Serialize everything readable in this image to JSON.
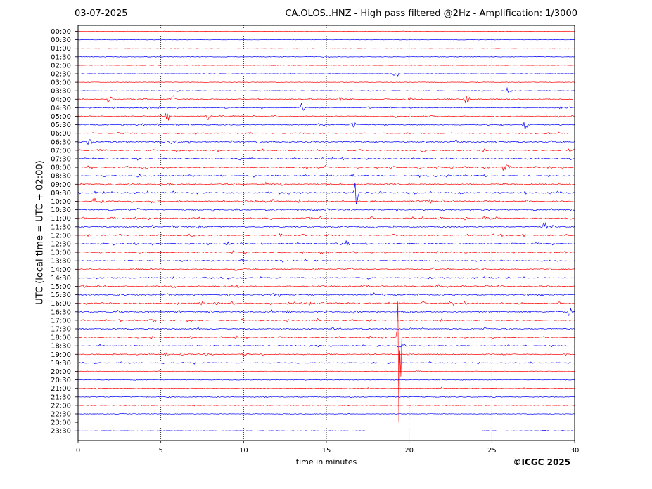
{
  "header": {
    "date": "03-07-2025",
    "title": "CA.OLOS..HNZ - High pass filtered @2Hz - Amplification: 1/3000"
  },
  "footer": {
    "copyright": "©ICGC 2025"
  },
  "colors": {
    "even_rows": "#ff0000",
    "odd_rows": "#0000ff",
    "grid": "#000000"
  },
  "chart_data": {
    "type": "line",
    "subtype": "helicorder",
    "title": "CA.OLOS..HNZ - High pass filtered @2Hz - Amplification: 1/3000",
    "xlabel": "time in minutes",
    "ylabel": "UTC (local time = UTC + 02:00)",
    "xlim": [
      0,
      30
    ],
    "xticks": [
      0,
      5,
      10,
      15,
      20,
      25,
      30
    ],
    "grid": "vertical dotted at 5-minute intervals",
    "row_labels": [
      "00:00",
      "00:30",
      "01:00",
      "01:30",
      "02:00",
      "02:30",
      "03:00",
      "03:30",
      "04:00",
      "04:30",
      "05:00",
      "05:30",
      "06:00",
      "06:30",
      "07:00",
      "07:30",
      "08:00",
      "08:30",
      "09:00",
      "09:30",
      "10:00",
      "10:30",
      "11:00",
      "11:30",
      "12:00",
      "12:30",
      "13:00",
      "13:30",
      "14:00",
      "14:30",
      "15:00",
      "15:30",
      "16:00",
      "16:30",
      "17:00",
      "17:30",
      "18:00",
      "18:30",
      "19:00",
      "19:30",
      "20:00",
      "20:30",
      "21:00",
      "21:30",
      "22:00",
      "22:30",
      "23:00",
      "23:30"
    ],
    "row_activity": [
      0.05,
      0.04,
      0.05,
      0.08,
      0.06,
      0.08,
      0.1,
      0.2,
      0.45,
      0.5,
      0.55,
      0.55,
      0.6,
      0.8,
      0.75,
      0.75,
      0.8,
      0.7,
      0.75,
      0.85,
      0.9,
      0.75,
      0.75,
      0.7,
      0.7,
      0.7,
      0.65,
      0.6,
      0.7,
      0.7,
      0.75,
      0.8,
      0.8,
      0.75,
      0.65,
      0.6,
      0.6,
      0.6,
      0.55,
      0.5,
      0.25,
      0.3,
      0.3,
      0.3,
      0.2,
      0.15,
      0.1,
      0.1
    ],
    "events": [
      {
        "row": 3,
        "minute": 15.0,
        "amp": 0.25
      },
      {
        "row": 5,
        "minute": 19.2,
        "amp": 0.5
      },
      {
        "row": 7,
        "minute": 26.0,
        "amp": 0.5
      },
      {
        "row": 8,
        "minute": 1.9,
        "amp": 0.6
      },
      {
        "row": 8,
        "minute": 5.7,
        "amp": 0.6
      },
      {
        "row": 8,
        "minute": 15.8,
        "amp": 0.4
      },
      {
        "row": 8,
        "minute": 20.0,
        "amp": 0.5
      },
      {
        "row": 8,
        "minute": 23.5,
        "amp": 0.7
      },
      {
        "row": 9,
        "minute": 13.5,
        "amp": 0.6
      },
      {
        "row": 10,
        "minute": 5.4,
        "amp": 0.7
      },
      {
        "row": 10,
        "minute": 7.8,
        "amp": 0.6
      },
      {
        "row": 11,
        "minute": 16.6,
        "amp": 0.6
      },
      {
        "row": 11,
        "minute": 27.0,
        "amp": 0.6
      },
      {
        "row": 13,
        "minute": 0.7,
        "amp": 0.6
      },
      {
        "row": 13,
        "minute": 5.6,
        "amp": 0.6
      },
      {
        "row": 16,
        "minute": 25.8,
        "amp": 0.8
      },
      {
        "row": 19,
        "minute": 16.8,
        "amp": 1.6
      },
      {
        "row": 20,
        "minute": 1.0,
        "amp": 0.8
      },
      {
        "row": 23,
        "minute": 28.2,
        "amp": 0.7
      },
      {
        "row": 25,
        "minute": 16.2,
        "amp": 0.5
      },
      {
        "row": 33,
        "minute": 29.7,
        "amp": 0.6
      },
      {
        "row": 36,
        "minute": 19.4,
        "amp": 14.5
      },
      {
        "row": 47,
        "minute": 28.2,
        "amp": 0.2
      }
    ],
    "gaps": [
      {
        "row": 46,
        "from": 0.0,
        "to": 30.0
      },
      {
        "row": 47,
        "from": 17.4,
        "to": 24.4
      },
      {
        "row": 47,
        "from": 25.3,
        "to": 25.7
      }
    ]
  }
}
